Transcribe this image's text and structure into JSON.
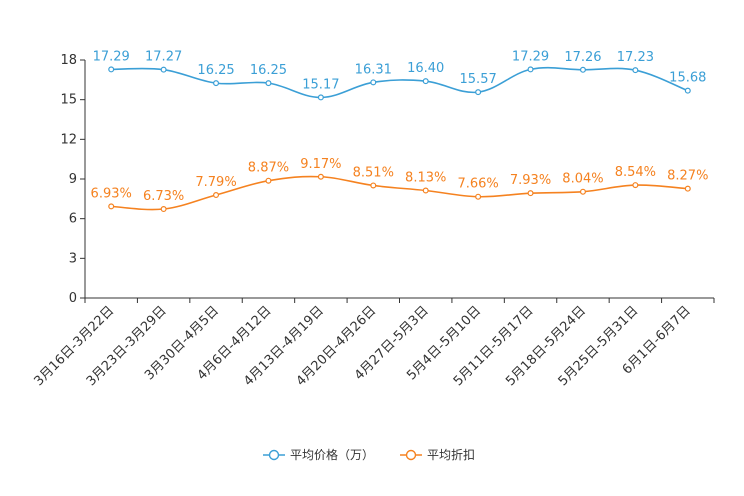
{
  "chart_data": {
    "type": "line",
    "categories": [
      "3月16日-3月22日",
      "3月23日-3月29日",
      "3月30日-4月5日",
      "4月6日-4月12日",
      "4月13日-4月19日",
      "4月20日-4月26日",
      "4月27日-5月3日",
      "5月4日-5月10日",
      "5月11日-5月17日",
      "5月18日-5月24日",
      "5月25日-5月31日",
      "6月1日-6月7日"
    ],
    "ylim": [
      0,
      18
    ],
    "yticks": [
      0,
      3,
      6,
      9,
      12,
      15,
      18
    ],
    "series": [
      {
        "name": "平均价格（万）",
        "color": "#3b9fd6",
        "values": [
          17.29,
          17.27,
          16.25,
          16.25,
          15.17,
          16.31,
          16.4,
          15.57,
          17.29,
          17.26,
          17.23,
          15.68
        ],
        "labels": [
          "17.29",
          "17.27",
          "16.25",
          "16.25",
          "15.17",
          "16.31",
          "16.40",
          "15.57",
          "17.29",
          "17.26",
          "17.23",
          "15.68"
        ]
      },
      {
        "name": "平均折扣",
        "color": "#f58220",
        "values": [
          6.93,
          6.73,
          7.79,
          8.87,
          9.17,
          8.51,
          8.13,
          7.66,
          7.93,
          8.04,
          8.54,
          8.27
        ],
        "labels": [
          "6.93%",
          "6.73%",
          "7.79%",
          "8.87%",
          "9.17%",
          "8.51%",
          "8.13%",
          "7.66%",
          "7.93%",
          "8.04%",
          "8.54%",
          "8.27%"
        ]
      }
    ],
    "legend": "bottom-center",
    "grid": false
  }
}
